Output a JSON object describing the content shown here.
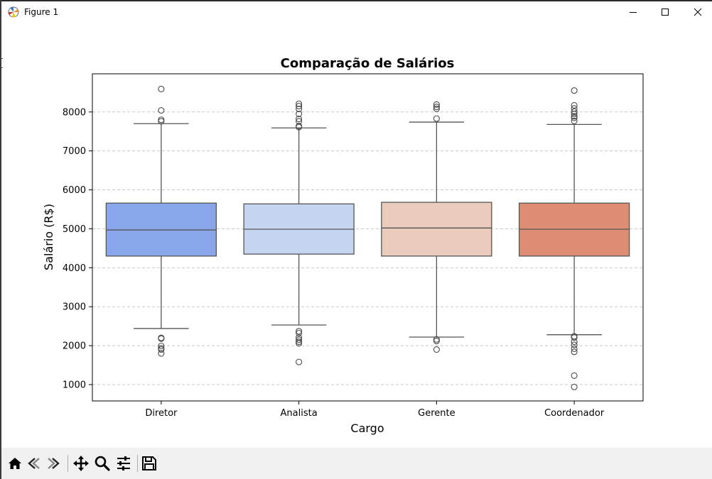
{
  "window": {
    "title": "Figure 1",
    "icon": "matplotlib-icon",
    "controls": {
      "minimize": "minimize-icon",
      "maximize": "maximize-icon",
      "close": "close-icon"
    }
  },
  "toolbar": {
    "buttons": [
      {
        "name": "home-button",
        "icon": "home-icon"
      },
      {
        "name": "back-button",
        "icon": "back-arrow-icon"
      },
      {
        "name": "forward-button",
        "icon": "forward-arrow-icon"
      },
      {
        "name": "pan-button",
        "icon": "move-icon"
      },
      {
        "name": "zoom-button",
        "icon": "magnifier-icon"
      },
      {
        "name": "configure-subplots-button",
        "icon": "sliders-icon"
      },
      {
        "name": "save-button",
        "icon": "save-icon"
      }
    ],
    "coordinates": ""
  },
  "chart_data": {
    "type": "box",
    "title": "Comparação de Salários",
    "xlabel": "Cargo",
    "ylabel": "Salário (R$)",
    "ylim": [
      580,
      8980
    ],
    "yticks": [
      1000,
      2000,
      3000,
      4000,
      5000,
      6000,
      7000,
      8000
    ],
    "grid": "y-dashed",
    "categories": [
      "Diretor",
      "Analista",
      "Gerente",
      "Coordenador"
    ],
    "boxes": [
      {
        "category": "Diretor",
        "color": "#8aa6ea",
        "whisker_low": 2440,
        "q1": 4300,
        "median": 4970,
        "q3": 5660,
        "whisker_high": 7700,
        "outliers": [
          8590,
          8040,
          7800,
          7760,
          2200,
          2180,
          1990,
          1930,
          1900,
          1800
        ]
      },
      {
        "category": "Analista",
        "color": "#c6d5ef",
        "whisker_low": 2530,
        "q1": 4350,
        "median": 4990,
        "q3": 5640,
        "whisker_high": 7590,
        "outliers": [
          8210,
          8150,
          8080,
          7950,
          7820,
          7760,
          7640,
          7610,
          2370,
          2320,
          2210,
          2150,
          2100,
          2060,
          1580
        ]
      },
      {
        "category": "Gerente",
        "color": "#eacbbc",
        "whisker_low": 2220,
        "q1": 4300,
        "median": 5020,
        "q3": 5680,
        "whisker_high": 7740,
        "outliers": [
          8190,
          8130,
          8080,
          7830,
          2160,
          2120,
          1900
        ]
      },
      {
        "category": "Coordenador",
        "color": "#de8d75",
        "whisker_low": 2280,
        "q1": 4300,
        "median": 4990,
        "q3": 5660,
        "whisker_high": 7680,
        "outliers": [
          8550,
          8170,
          8090,
          8010,
          7950,
          7890,
          7850,
          7770,
          2240,
          2210,
          2100,
          2020,
          1920,
          1840,
          1230,
          940
        ]
      }
    ]
  }
}
